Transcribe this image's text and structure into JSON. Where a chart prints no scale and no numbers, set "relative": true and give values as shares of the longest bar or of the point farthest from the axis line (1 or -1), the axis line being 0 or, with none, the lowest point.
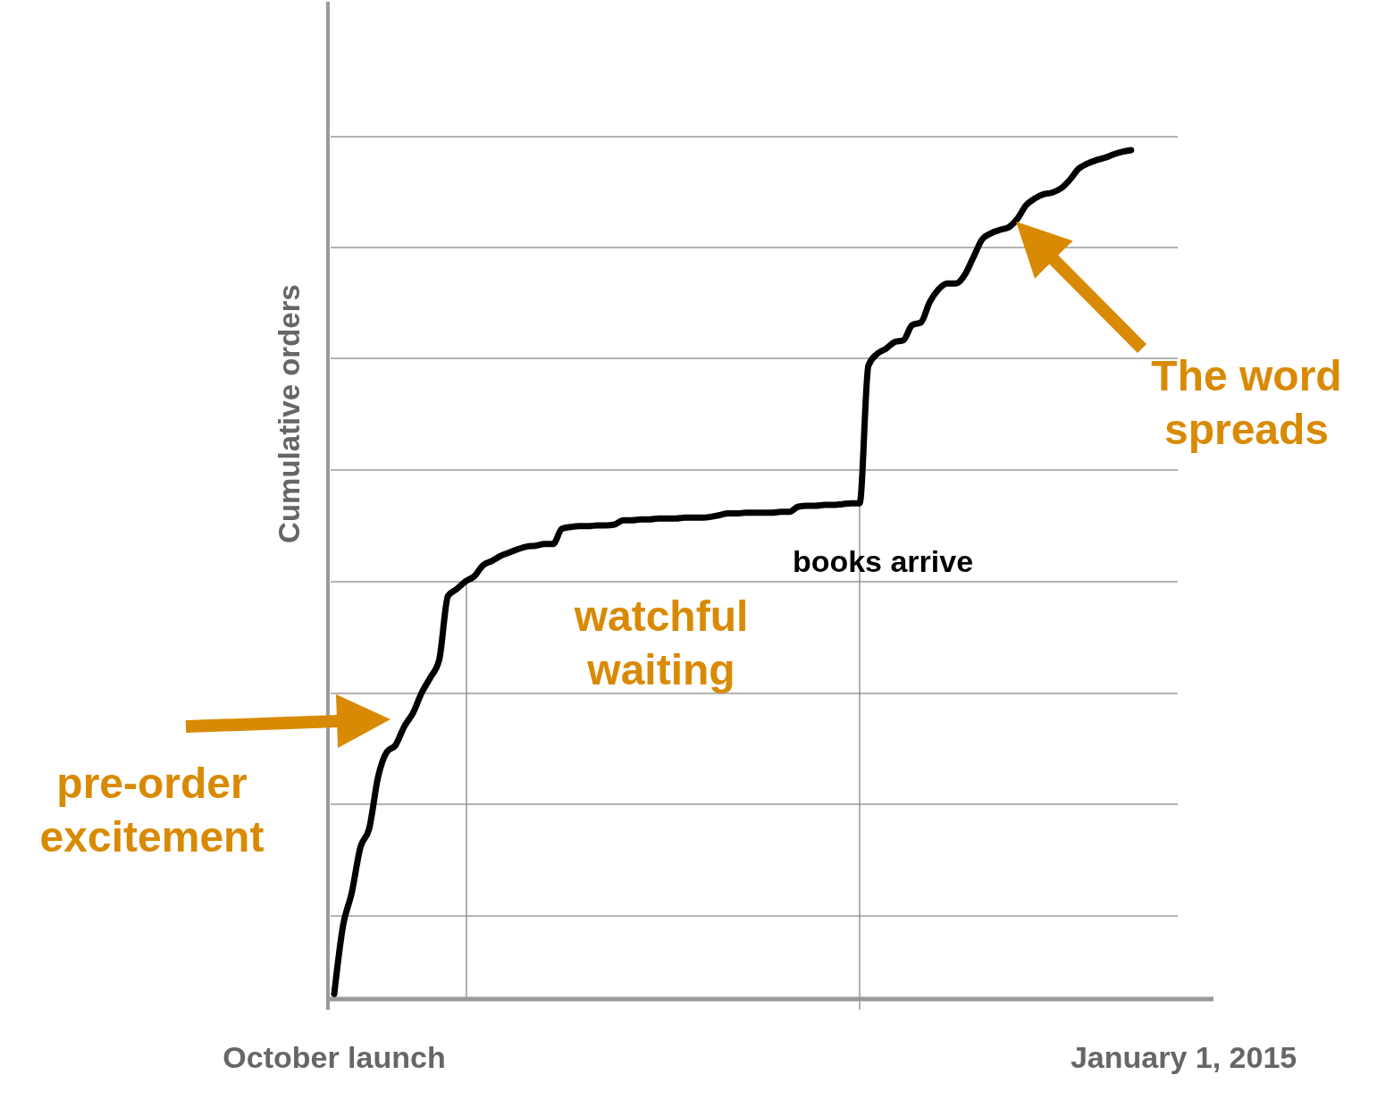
{
  "chart_data": {
    "type": "line",
    "ylabel": "Cumulative orders",
    "relative": true,
    "categories": [
      "October launch",
      null,
      null,
      null,
      null,
      null,
      null,
      null,
      null,
      null,
      null,
      null,
      null,
      null,
      null,
      null,
      null,
      null,
      null,
      null,
      null,
      null,
      null,
      null,
      null,
      null,
      null,
      null,
      null,
      null,
      null,
      null,
      null,
      null,
      null,
      null,
      null,
      null,
      null,
      null,
      null,
      null,
      null,
      null,
      null,
      null,
      null,
      null,
      null,
      null,
      null,
      null,
      null,
      null,
      null,
      null,
      null,
      null,
      null,
      null,
      null,
      null,
      null,
      null,
      null,
      null,
      null,
      null,
      null,
      null,
      null,
      null,
      null,
      null,
      null,
      null,
      null,
      null,
      null,
      null,
      null,
      null,
      null,
      null,
      null,
      null,
      null,
      null,
      null,
      null,
      null,
      null,
      null,
      null,
      null,
      null,
      null,
      "January 1, 2015"
    ],
    "series": [
      {
        "color": "#000000",
        "values": [
          0.006,
          0.086,
          0.125,
          0.179,
          0.201,
          0.261,
          0.291,
          0.299,
          0.321,
          0.337,
          0.361,
          0.379,
          0.4,
          0.475,
          0.483,
          0.492,
          0.498,
          0.511,
          0.516,
          0.522,
          0.526,
          0.53,
          0.533,
          0.534,
          0.536,
          0.536,
          0.554,
          0.556,
          0.557,
          0.557,
          0.558,
          0.558,
          0.559,
          0.564,
          0.564,
          0.565,
          0.565,
          0.566,
          0.566,
          0.566,
          0.567,
          0.567,
          0.567,
          0.568,
          0.57,
          0.572,
          0.572,
          0.573,
          0.573,
          0.573,
          0.573,
          0.574,
          0.574,
          0.58,
          0.581,
          0.581,
          0.582,
          0.582,
          0.583,
          0.584,
          0.584,
          0.746,
          0.76,
          0.766,
          0.774,
          0.776,
          0.794,
          0.797,
          0.821,
          0.836,
          0.843,
          0.843,
          0.853,
          0.874,
          0.895,
          0.902,
          0.906,
          0.909,
          0.919,
          0.935,
          0.943,
          0.948,
          0.95,
          0.955,
          0.965,
          0.978,
          0.984,
          0.988,
          0.991,
          0.995,
          0.998,
          1,
          null,
          null,
          null,
          null,
          null,
          null
        ]
      }
    ],
    "grid": "y",
    "annotations": [
      "pre-order\nexcitement",
      "watchful\nwaiting",
      "books arrive",
      "The word\nspreads"
    ]
  }
}
